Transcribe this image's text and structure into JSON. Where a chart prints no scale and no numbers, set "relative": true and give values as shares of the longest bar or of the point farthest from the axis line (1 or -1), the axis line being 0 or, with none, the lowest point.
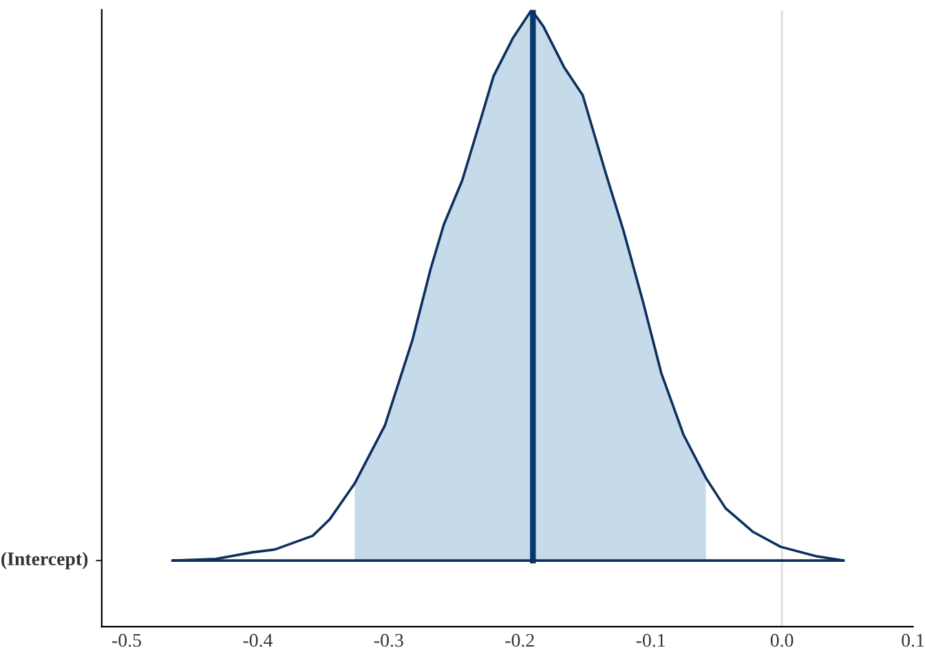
{
  "chart_data": {
    "type": "area",
    "relative": true,
    "xlim": [
      -0.519,
      0.1
    ],
    "xticks": [
      {
        "value": -0.5,
        "label": "-0.5"
      },
      {
        "value": -0.4,
        "label": "-0.4"
      },
      {
        "value": -0.3,
        "label": "-0.3"
      },
      {
        "value": -0.2,
        "label": "-0.2"
      },
      {
        "value": -0.1,
        "label": "-0.1"
      },
      {
        "value": 0.0,
        "label": "0.0"
      },
      {
        "value": 0.1,
        "label": "0.1"
      }
    ],
    "annotations": [
      "(Intercept)"
    ],
    "grid": false,
    "legend": false,
    "series": [
      {
        "color": "#c6dbe9",
        "x": [
          -0.326,
          -0.303,
          -0.282,
          -0.268,
          -0.258,
          -0.244,
          -0.23,
          -0.22,
          -0.205,
          -0.191,
          -0.182,
          -0.166,
          -0.152,
          -0.134,
          -0.121,
          -0.106,
          -0.092,
          -0.075,
          -0.058
        ],
        "values": [
          0.14,
          0.245,
          0.4,
          0.53,
          0.61,
          0.69,
          0.8,
          0.88,
          0.95,
          1.0,
          0.97,
          0.895,
          0.845,
          0.7,
          0.6,
          0.47,
          0.34,
          0.228,
          0.15
        ]
      },
      {
        "type": "line",
        "color": "#0d2f5e",
        "x": [
          -0.465,
          -0.432,
          -0.404,
          -0.387,
          -0.358,
          -0.345,
          -0.326,
          -0.303,
          -0.282,
          -0.268,
          -0.258,
          -0.244,
          -0.23,
          -0.22,
          -0.205,
          -0.191,
          -0.182,
          -0.166,
          -0.152,
          -0.134,
          -0.121,
          -0.106,
          -0.092,
          -0.075,
          -0.058,
          -0.043,
          -0.022,
          -0.001,
          0.026,
          0.047
        ],
        "values": [
          0,
          0.003,
          0.015,
          0.02,
          0.045,
          0.075,
          0.14,
          0.245,
          0.4,
          0.53,
          0.61,
          0.69,
          0.8,
          0.88,
          0.95,
          1.0,
          0.97,
          0.895,
          0.845,
          0.7,
          0.6,
          0.47,
          0.34,
          0.228,
          0.15,
          0.095,
          0.052,
          0.025,
          0.008,
          0
        ]
      },
      {
        "type": "line",
        "color": "#03396c",
        "x": [
          -0.19,
          -0.19
        ],
        "values": [
          0,
          1.0
        ]
      }
    ],
    "ref_lines": [
      {
        "axis": "x",
        "value": 0.0,
        "color": "#dddddd"
      },
      {
        "axis": "y",
        "value": 0,
        "color": "#0d2f5e"
      }
    ]
  }
}
